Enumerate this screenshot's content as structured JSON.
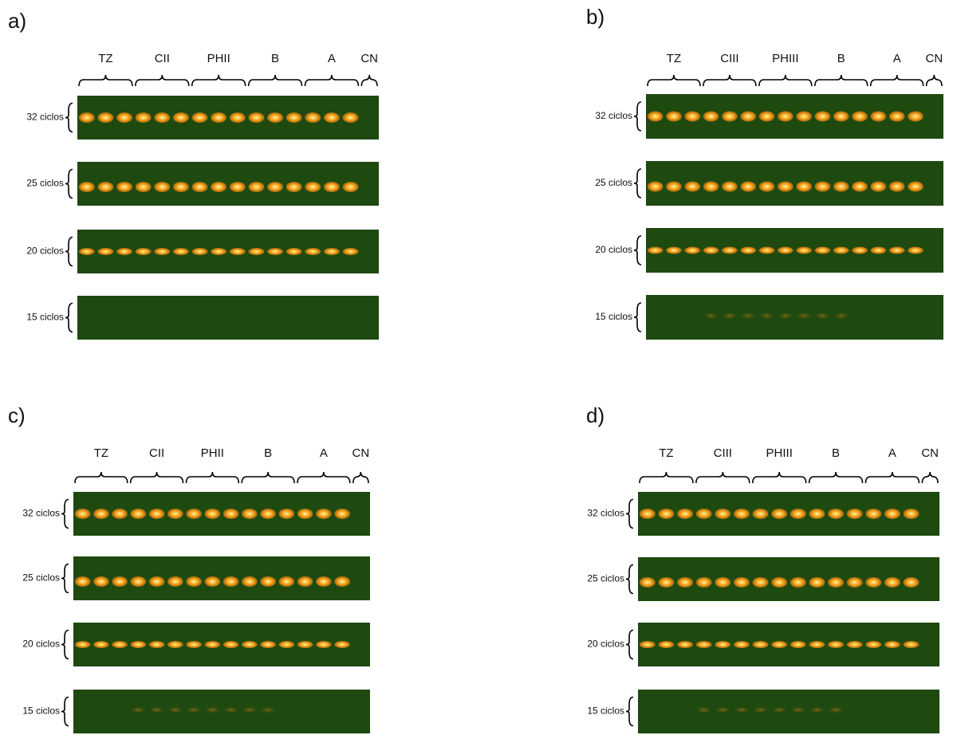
{
  "panels": [
    {
      "label": "a)",
      "groups": [
        "TZ",
        "CII",
        "PHII",
        "B",
        "A",
        "CN"
      ],
      "rows": [
        "32 ciclos",
        "25 ciclos",
        "20 ciclos",
        "15 ciclos"
      ]
    },
    {
      "label": "b)",
      "groups": [
        "TZ",
        "CIII",
        "PHIII",
        "B",
        "A",
        "CN"
      ],
      "rows": [
        "32 ciclos",
        "25 ciclos",
        "20 ciclos",
        "15 ciclos"
      ]
    },
    {
      "label": "c)",
      "groups": [
        "TZ",
        "CII",
        "PHII",
        "B",
        "A",
        "CN"
      ],
      "rows": [
        "32 ciclos",
        "25 ciclos",
        "20 ciclos",
        "15 ciclos"
      ]
    },
    {
      "label": "d)",
      "groups": [
        "TZ",
        "CIII",
        "PHIII",
        "B",
        "A",
        "CN"
      ],
      "rows": [
        "32 ciclos",
        "25 ciclos",
        "20 ciclos",
        "15 ciclos"
      ]
    }
  ]
}
